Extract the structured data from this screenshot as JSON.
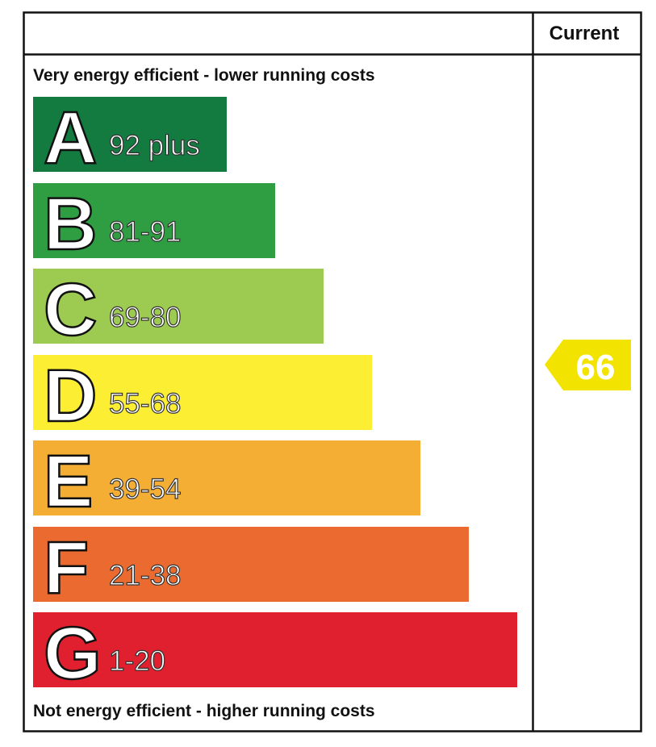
{
  "header": {
    "column": "Current"
  },
  "top_note": "Very energy efficient - lower running costs",
  "bottom_note": "Not energy efficient - higher running costs",
  "bands": [
    {
      "letter": "A",
      "range": "92 plus",
      "color": "#137b40"
    },
    {
      "letter": "B",
      "range": "81-91",
      "color": "#2f9e43"
    },
    {
      "letter": "C",
      "range": "69-80",
      "color": "#9dca50"
    },
    {
      "letter": "D",
      "range": "55-68",
      "color": "#fcee32"
    },
    {
      "letter": "E",
      "range": "39-54",
      "color": "#f4ae34"
    },
    {
      "letter": "F",
      "range": "21-38",
      "color": "#ea6a30"
    },
    {
      "letter": "G",
      "range": "1-20",
      "color": "#e0202e"
    }
  ],
  "current": {
    "value": 66,
    "color": "#f2e400"
  }
}
